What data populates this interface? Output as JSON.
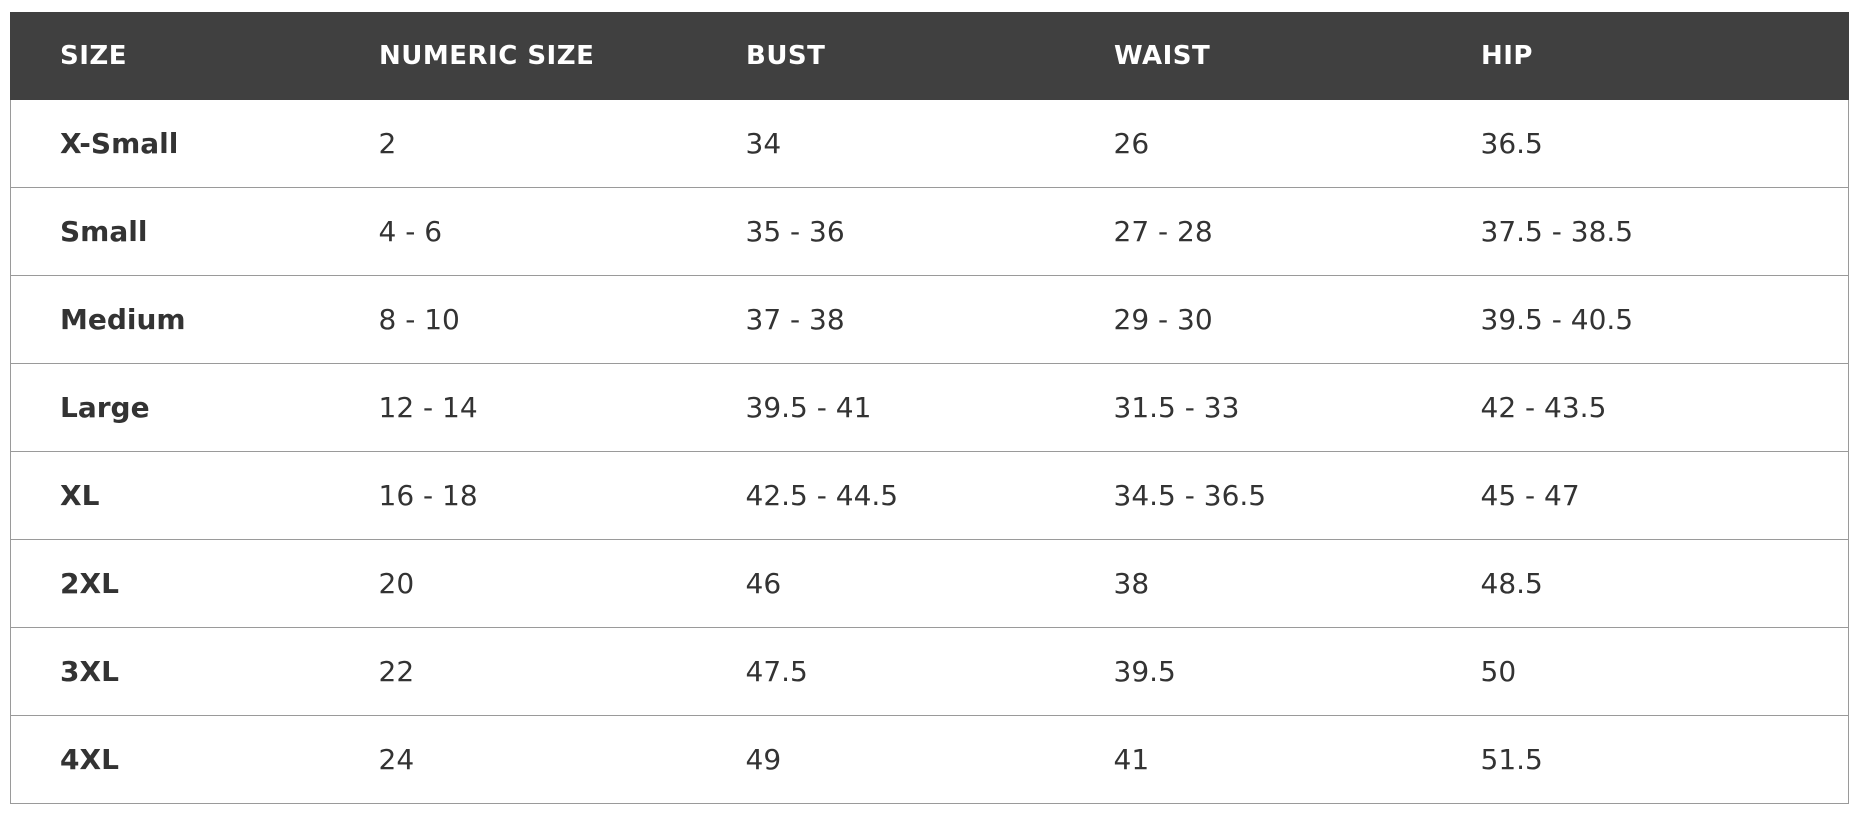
{
  "table": {
    "headers": [
      "SIZE",
      "NUMERIC SIZE",
      "BUST",
      "WAIST",
      "HIP"
    ],
    "rows": [
      [
        "X-Small",
        "2",
        "34",
        "26",
        "36.5"
      ],
      [
        "Small",
        "4 - 6",
        "35 - 36",
        "27 - 28",
        "37.5 - 38.5"
      ],
      [
        "Medium",
        "8 - 10",
        "37 - 38",
        "29 - 30",
        "39.5 - 40.5"
      ],
      [
        "Large",
        "12 - 14",
        "39.5 - 41",
        "31.5 - 33",
        "42 - 43.5"
      ],
      [
        "XL",
        "16 - 18",
        "42.5 - 44.5",
        "34.5 - 36.5",
        "45 - 47"
      ],
      [
        "2XL",
        "20",
        "46",
        "38",
        "48.5"
      ],
      [
        "3XL",
        "22",
        "47.5",
        "39.5",
        "50"
      ],
      [
        "4XL",
        "24",
        "49",
        "41",
        "51.5"
      ]
    ]
  }
}
